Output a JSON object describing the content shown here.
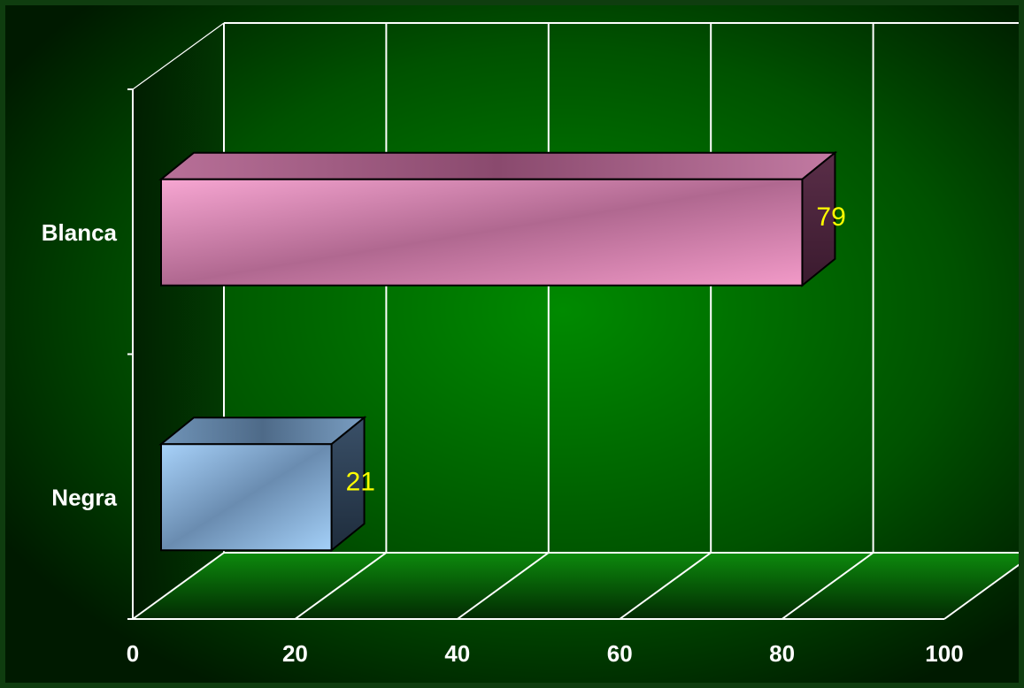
{
  "chart_data": {
    "type": "bar",
    "orientation": "horizontal",
    "three_d": true,
    "categories": [
      "Blanca",
      "Negra"
    ],
    "values": [
      79,
      21
    ],
    "data_labels": [
      "79",
      "21"
    ],
    "x_ticks": [
      "0",
      "20",
      "40",
      "60",
      "80",
      "100"
    ],
    "xlim": [
      0,
      100
    ],
    "grid": true,
    "legend": "none",
    "title": "",
    "xlabel": "",
    "ylabel": "",
    "colors": {
      "background_center": "#008a00",
      "background_edge": "#001a00",
      "floor": "#0a7a0a",
      "grid": "#ffffff",
      "bar_blanca": "#f29ac8",
      "bar_blanca_dark": "#a86088",
      "bar_negra": "#9fcaf5",
      "bar_negra_dark": "#5a7a98",
      "data_label": "#ffff00",
      "tick_label": "#ffffff"
    }
  }
}
